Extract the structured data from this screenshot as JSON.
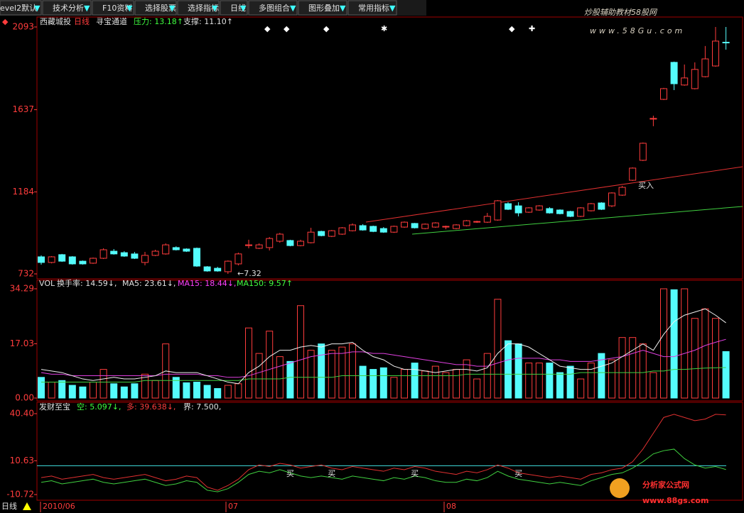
{
  "toolbar": {
    "items": [
      "evel2默认",
      "技术分析",
      "F10资料",
      "选择股票",
      "选择指标",
      "日线",
      "多图组合",
      "图形叠加",
      "常用指标"
    ]
  },
  "watermark": {
    "title": "炒股辅助教材58股网",
    "url": "www.58Gu.com"
  },
  "logo": {
    "title": "分析家公式网",
    "url": "www.88gs.com"
  },
  "price_panel": {
    "stock": "西藏城投",
    "period": "日线",
    "indicator": "寻宝通道",
    "pressure": "压力: 13.18↑",
    "support": "支撑: 11.10↑",
    "buy_signal": "买入",
    "low_label": "←7.32",
    "ylim": [
      732,
      2093
    ],
    "yticks": [
      2093,
      1637,
      1184,
      732
    ],
    "candles": [
      [
        826,
        834,
        783,
        795
      ],
      [
        795,
        830,
        790,
        826
      ],
      [
        838,
        842,
        798,
        802
      ],
      [
        826,
        830,
        783,
        787
      ],
      [
        802,
        806,
        783,
        787
      ],
      [
        791,
        822,
        787,
        818
      ],
      [
        818,
        873,
        814,
        865
      ],
      [
        857,
        869,
        838,
        842
      ],
      [
        849,
        857,
        826,
        830
      ],
      [
        842,
        853,
        814,
        818
      ],
      [
        795,
        853,
        779,
        834
      ],
      [
        834,
        865,
        830,
        857
      ],
      [
        842,
        900,
        838,
        892
      ],
      [
        877,
        884,
        861,
        865
      ],
      [
        869,
        873,
        853,
        857
      ],
      [
        873,
        877,
        771,
        775
      ],
      [
        771,
        775,
        744,
        748
      ],
      [
        763,
        771,
        744,
        748
      ],
      [
        744,
        806,
        732,
        802
      ],
      [
        787,
        849,
        779,
        842
      ],
      [
        888,
        920,
        873,
        892
      ],
      [
        873,
        900,
        869,
        892
      ],
      [
        877,
        935,
        861,
        927
      ],
      [
        912,
        958,
        904,
        951
      ],
      [
        916,
        920,
        884,
        888
      ],
      [
        888,
        920,
        884,
        912
      ],
      [
        904,
        986,
        900,
        962
      ],
      [
        966,
        970,
        939,
        943
      ],
      [
        939,
        974,
        935,
        970
      ],
      [
        951,
        990,
        947,
        986
      ],
      [
        970,
        1010,
        966,
        1002
      ],
      [
        998,
        1006,
        970,
        974
      ],
      [
        994,
        998,
        962,
        966
      ],
      [
        982,
        990,
        958,
        962
      ],
      [
        962,
        998,
        958,
        994
      ],
      [
        990,
        1021,
        986,
        1017
      ],
      [
        1010,
        1013,
        982,
        986
      ],
      [
        982,
        1010,
        978,
        1006
      ],
      [
        990,
        1017,
        986,
        1013
      ],
      [
        990,
        998,
        978,
        994
      ],
      [
        982,
        1006,
        978,
        1002
      ],
      [
        998,
        1029,
        994,
        1025
      ],
      [
        1017,
        1025,
        1013,
        1021
      ],
      [
        1017,
        1068,
        1013,
        1049
      ],
      [
        1029,
        1139,
        1025,
        1135
      ],
      [
        1119,
        1127,
        1084,
        1088
      ],
      [
        1107,
        1127,
        1049,
        1068
      ],
      [
        1072,
        1100,
        1068,
        1096
      ],
      [
        1084,
        1111,
        1080,
        1107
      ],
      [
        1092,
        1100,
        1064,
        1068
      ],
      [
        1084,
        1088,
        1060,
        1064
      ],
      [
        1076,
        1080,
        1045,
        1049
      ],
      [
        1049,
        1100,
        1045,
        1096
      ],
      [
        1080,
        1123,
        1076,
        1119
      ],
      [
        1123,
        1127,
        1084,
        1088
      ],
      [
        1107,
        1182,
        1100,
        1178
      ],
      [
        1166,
        1217,
        1162,
        1209
      ],
      [
        1248,
        1319,
        1244,
        1315
      ],
      [
        1358,
        1456,
        1354,
        1452
      ],
      [
        1585,
        1604,
        1546,
        1589
      ],
      [
        1694,
        1757,
        1690,
        1753
      ],
      [
        1898,
        1902,
        1745,
        1780
      ],
      [
        1773,
        1886,
        1769,
        1812
      ],
      [
        1753,
        1898,
        1749,
        1859
      ],
      [
        1819,
        1988,
        1815,
        1917
      ],
      [
        1878,
        2093,
        1874,
        2015
      ],
      [
        2009,
        2093,
        1968,
        2005
      ]
    ]
  },
  "volume_panel": {
    "header": "VOL",
    "turnover": "换手率: 14.59↓,",
    "ma5_label": "MA5: 23.61↓,",
    "ma15_label": "MA15: 18.44↓,",
    "ma150_label": "MA150: 9.57↑",
    "ylim": [
      0,
      34.29
    ],
    "yticks": [
      {
        "value": 0,
        "label": "0.00"
      },
      17.03,
      34.29
    ],
    "values": [
      6.5,
      5,
      5.5,
      4,
      3.5,
      5,
      9,
      4.5,
      3.5,
      4.5,
      7.5,
      5.5,
      17,
      6.5,
      4.8,
      5,
      4,
      3,
      4,
      4.5,
      22,
      14,
      21,
      13,
      11.5,
      29,
      15,
      17,
      15,
      16,
      17,
      10,
      9,
      9.5,
      6.5,
      9,
      11,
      8.5,
      10,
      8,
      9,
      12,
      6,
      14,
      31,
      18,
      17,
      11,
      11,
      11,
      8,
      10,
      6,
      11,
      14,
      12,
      19,
      19,
      17,
      8,
      34.29,
      34,
      34.29,
      25,
      28,
      25,
      14.59
    ],
    "ma5": [
      9,
      8.5,
      8,
      7,
      6,
      5.5,
      6,
      6.5,
      6,
      6,
      6.5,
      7,
      8.5,
      8,
      8,
      8,
      7,
      6,
      5,
      4.5,
      8,
      10,
      13,
      15,
      15,
      16,
      16.5,
      16,
      17,
      17,
      17.5,
      15,
      13,
      12,
      10,
      9,
      9,
      8.5,
      8,
      8.5,
      9,
      9,
      8.5,
      9.5,
      14,
      17,
      17,
      16,
      14,
      12,
      10,
      9.5,
      9,
      9,
      10,
      11,
      13,
      15,
      17,
      15,
      20,
      24,
      26,
      27,
      28,
      26,
      23.61
    ],
    "ma15": [
      8,
      7.5,
      7.5,
      7,
      7,
      7,
      7,
      7,
      7,
      7,
      7,
      7,
      7.5,
      7.5,
      7.5,
      7.5,
      7,
      7,
      6.5,
      6.5,
      7,
      8,
      9,
      10,
      11,
      12,
      13,
      13.5,
      14,
      14,
      14.5,
      14.5,
      14,
      14,
      13.5,
      13,
      12.5,
      12,
      11.5,
      11,
      10.5,
      10.5,
      10,
      10,
      11,
      12,
      12.5,
      12.5,
      12.5,
      12,
      12,
      11.5,
      11.5,
      11.5,
      12,
      12.5,
      13,
      14,
      15,
      14,
      13,
      13,
      14,
      15,
      16.5,
      17.5,
      18.44
    ],
    "ma150": [
      5,
      5,
      5,
      5,
      5,
      5,
      5,
      5,
      5,
      5,
      5.5,
      5.5,
      5.5,
      5.5,
      5.5,
      5.5,
      5.5,
      5.5,
      5.5,
      5.5,
      6,
      6,
      6,
      6,
      6.5,
      6.5,
      6.5,
      6.5,
      6.5,
      7,
      7,
      7,
      7,
      7,
      7,
      7,
      7,
      7,
      7,
      7,
      7,
      7.5,
      7.5,
      7.5,
      7.5,
      7.5,
      7.5,
      7.5,
      7.5,
      7.5,
      7.5,
      7.5,
      8,
      8,
      8,
      8,
      8,
      8,
      8,
      8.5,
      8.5,
      9,
      9,
      9.2,
      9.4,
      9.5,
      9.57
    ]
  },
  "indicator_panel": {
    "name": "发财至宝",
    "short_label": "空: 5.097↓,",
    "long_label": "多: 39.638↓,",
    "bound_label": "界: 7.500,",
    "buy_label": "买",
    "ylim": [
      -10.72,
      40.4
    ],
    "yticks": [
      {
        "value": 40.4,
        "label": "40.40"
      },
      10.63,
      -10.72
    ],
    "long": [
      0,
      1,
      -1,
      0,
      1,
      2,
      0,
      -1,
      0,
      1,
      2,
      0,
      -2,
      -1,
      1,
      0,
      -6,
      -8,
      -5,
      -1,
      5,
      8,
      7,
      9,
      8,
      6,
      7,
      8,
      6,
      5,
      7,
      6,
      5,
      4,
      6,
      5,
      7,
      6,
      4,
      3,
      2,
      4,
      3,
      5,
      8,
      6,
      3,
      2,
      1,
      0,
      1,
      0,
      -1,
      2,
      3,
      5,
      6,
      10,
      18,
      28,
      38,
      40,
      38,
      36,
      37,
      40,
      39.638
    ],
    "short": [
      -3,
      -2,
      -4,
      -3,
      -2,
      -1,
      -3,
      -4,
      -3,
      -2,
      -1,
      -3,
      -5,
      -4,
      -2,
      -3,
      -8,
      -9,
      -7,
      -3,
      2,
      4,
      3,
      5,
      3,
      1,
      0,
      1,
      0,
      -1,
      1,
      0,
      -1,
      -2,
      0,
      -1,
      1,
      0,
      -2,
      -3,
      -3,
      -1,
      -2,
      0,
      4,
      1,
      -1,
      -2,
      -3,
      -4,
      -3,
      -4,
      -5,
      -2,
      0,
      2,
      3,
      6,
      10,
      15,
      17,
      18,
      12,
      8,
      6,
      7,
      5.097
    ],
    "bound": 7.5
  },
  "footer": {
    "period": "日线",
    "dates": [
      "2010/06",
      "07",
      "08"
    ]
  }
}
